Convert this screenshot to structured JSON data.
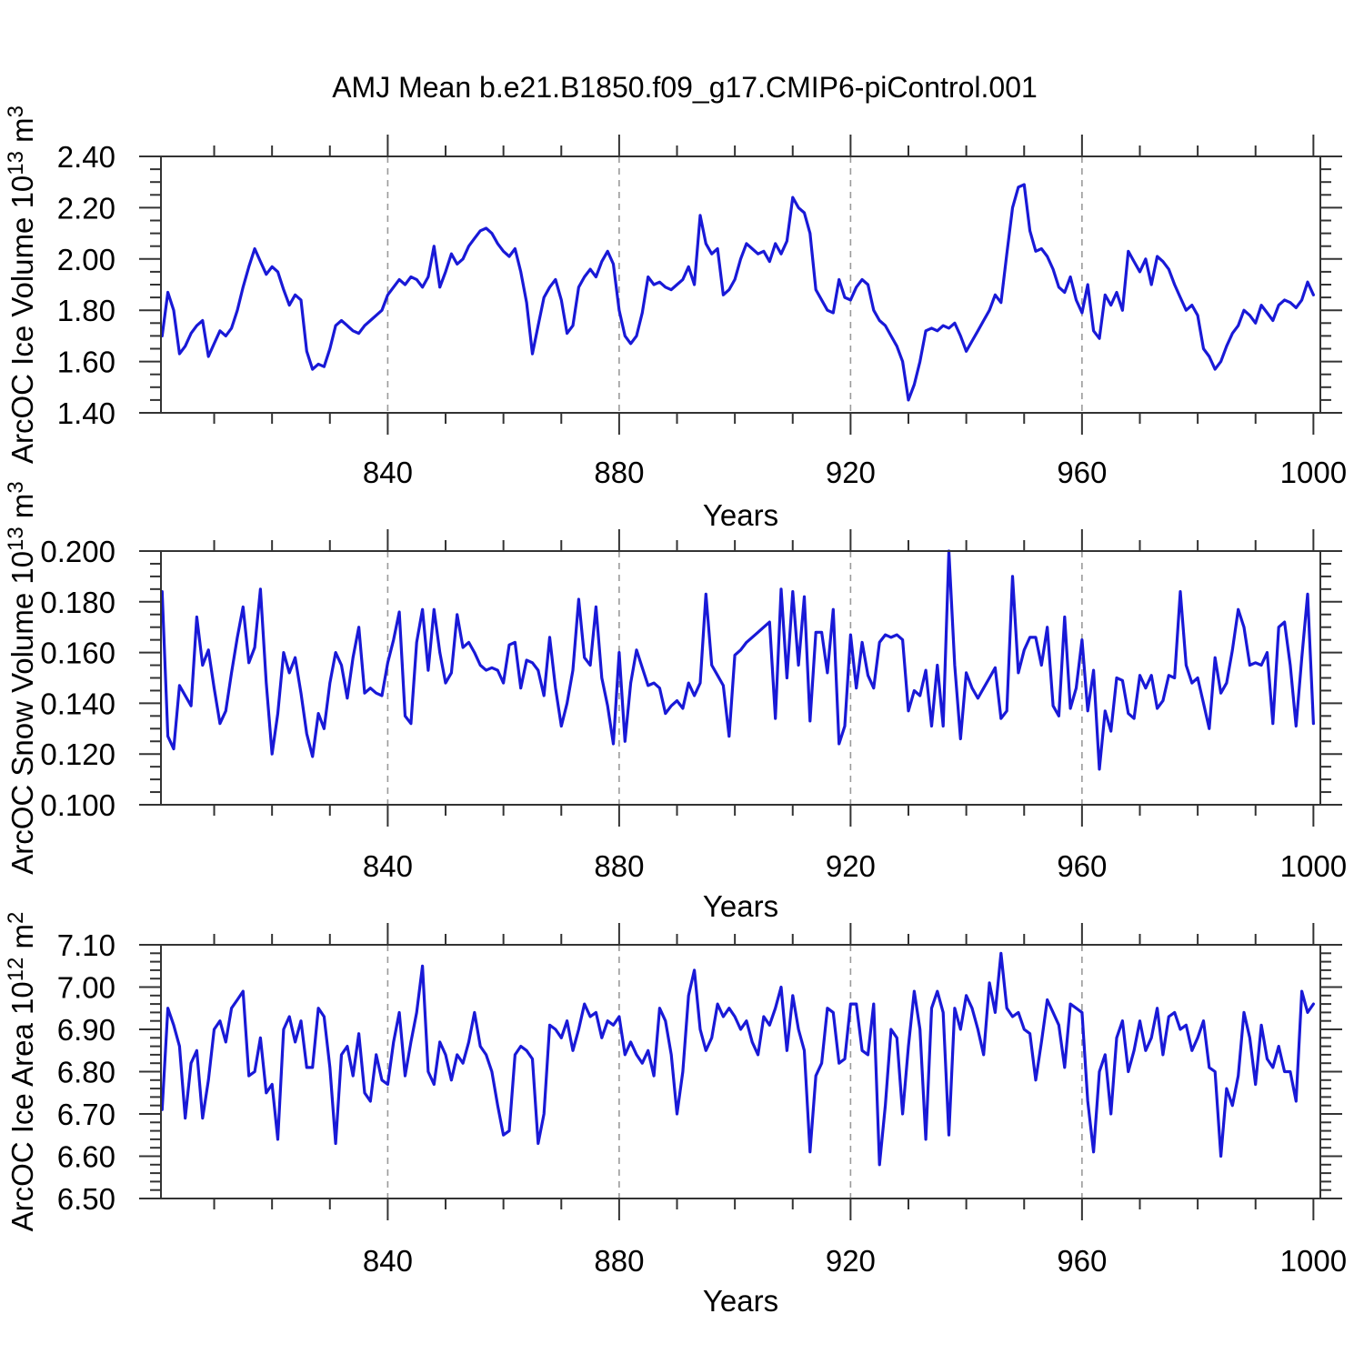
{
  "title": "AMJ Mean b.e21.B1850.f09_g17.CMIP6-piControl.001",
  "style": {
    "line_color": "#1919d7",
    "grid_color": "#9a9a9a",
    "axis_color": "#333333",
    "text_color": "#000000"
  },
  "chart_data": [
    {
      "type": "line",
      "name": "arcoc-ice-volume",
      "xlabel": "Years",
      "ylabel_parts": [
        {
          "t": "ArcOC Ice Volume 10"
        },
        {
          "t": "13",
          "sup": true
        },
        {
          "t": " m"
        },
        {
          "t": "3",
          "sup": true
        }
      ],
      "x_start": 801,
      "x_end": 1000,
      "xlim": [
        800.8,
        1001.2
      ],
      "ylim": [
        1.4,
        2.4
      ],
      "yticks": [
        1.4,
        1.6,
        1.8,
        2.0,
        2.2,
        2.4
      ],
      "ytick_labels": [
        "1.40",
        "1.60",
        "1.80",
        "2.00",
        "2.20",
        "2.40"
      ],
      "y_minor_step": 0.05,
      "xticks": [
        840,
        880,
        920,
        960,
        1000
      ],
      "xtick_labels": [
        "840",
        "880",
        "920",
        "960",
        "1000"
      ],
      "x_minor_step": 10,
      "grid_x": [
        840,
        880,
        920,
        960
      ],
      "values": [
        1.7,
        1.87,
        1.8,
        1.63,
        1.66,
        1.71,
        1.74,
        1.76,
        1.62,
        1.67,
        1.72,
        1.7,
        1.73,
        1.8,
        1.89,
        1.97,
        2.04,
        1.99,
        1.94,
        1.97,
        1.95,
        1.88,
        1.82,
        1.86,
        1.84,
        1.64,
        1.57,
        1.59,
        1.58,
        1.65,
        1.74,
        1.76,
        1.74,
        1.72,
        1.71,
        1.74,
        1.76,
        1.78,
        1.8,
        1.86,
        1.89,
        1.92,
        1.9,
        1.93,
        1.92,
        1.89,
        1.93,
        2.05,
        1.89,
        1.95,
        2.02,
        1.98,
        2.0,
        2.05,
        2.08,
        2.11,
        2.12,
        2.1,
        2.06,
        2.03,
        2.01,
        2.04,
        1.95,
        1.83,
        1.63,
        1.74,
        1.85,
        1.89,
        1.92,
        1.84,
        1.71,
        1.74,
        1.89,
        1.93,
        1.96,
        1.93,
        1.99,
        2.03,
        1.98,
        1.8,
        1.7,
        1.67,
        1.7,
        1.79,
        1.93,
        1.9,
        1.91,
        1.89,
        1.88,
        1.9,
        1.92,
        1.97,
        1.9,
        2.17,
        2.06,
        2.02,
        2.04,
        1.86,
        1.88,
        1.92,
        2.0,
        2.06,
        2.04,
        2.02,
        2.03,
        1.99,
        2.06,
        2.02,
        2.07,
        2.24,
        2.2,
        2.18,
        2.1,
        1.88,
        1.84,
        1.8,
        1.79,
        1.92,
        1.85,
        1.84,
        1.89,
        1.92,
        1.9,
        1.8,
        1.76,
        1.74,
        1.7,
        1.66,
        1.6,
        1.45,
        1.51,
        1.6,
        1.72,
        1.73,
        1.72,
        1.74,
        1.73,
        1.75,
        1.7,
        1.64,
        1.68,
        1.72,
        1.76,
        1.8,
        1.86,
        1.83,
        2.02,
        2.2,
        2.28,
        2.29,
        2.11,
        2.03,
        2.04,
        2.01,
        1.96,
        1.89,
        1.87,
        1.93,
        1.84,
        1.79,
        1.9,
        1.72,
        1.69,
        1.86,
        1.82,
        1.87,
        1.8,
        2.03,
        1.99,
        1.95,
        2.0,
        1.9,
        2.01,
        1.99,
        1.96,
        1.9,
        1.85,
        1.8,
        1.82,
        1.78,
        1.65,
        1.62,
        1.57,
        1.6,
        1.66,
        1.71,
        1.74,
        1.8,
        1.78,
        1.75,
        1.82,
        1.79,
        1.76,
        1.82,
        1.84,
        1.83,
        1.81,
        1.84,
        1.91,
        1.86
      ]
    },
    {
      "type": "line",
      "name": "arcoc-snow-volume",
      "xlabel": "Years",
      "ylabel_parts": [
        {
          "t": "ArcOC Snow Volume 10"
        },
        {
          "t": "13",
          "sup": true
        },
        {
          "t": " m"
        },
        {
          "t": "3",
          "sup": true
        }
      ],
      "x_start": 801,
      "x_end": 1000,
      "xlim": [
        800.8,
        1001.2
      ],
      "ylim": [
        0.1,
        0.2
      ],
      "yticks": [
        0.1,
        0.12,
        0.14,
        0.16,
        0.18,
        0.2
      ],
      "ytick_labels": [
        "0.100",
        "0.120",
        "0.140",
        "0.160",
        "0.180",
        "0.200"
      ],
      "y_minor_step": 0.005,
      "xticks": [
        840,
        880,
        920,
        960,
        1000
      ],
      "xtick_labels": [
        "840",
        "880",
        "920",
        "960",
        "1000"
      ],
      "x_minor_step": 10,
      "grid_x": [
        840,
        880,
        920,
        960
      ],
      "values": [
        0.184,
        0.127,
        0.122,
        0.147,
        0.143,
        0.139,
        0.174,
        0.155,
        0.161,
        0.146,
        0.132,
        0.137,
        0.152,
        0.166,
        0.178,
        0.156,
        0.162,
        0.185,
        0.148,
        0.12,
        0.136,
        0.16,
        0.152,
        0.158,
        0.144,
        0.128,
        0.119,
        0.136,
        0.13,
        0.148,
        0.16,
        0.155,
        0.142,
        0.158,
        0.17,
        0.144,
        0.146,
        0.144,
        0.143,
        0.156,
        0.165,
        0.176,
        0.135,
        0.132,
        0.164,
        0.177,
        0.153,
        0.177,
        0.16,
        0.148,
        0.152,
        0.175,
        0.162,
        0.164,
        0.16,
        0.155,
        0.153,
        0.154,
        0.153,
        0.148,
        0.163,
        0.164,
        0.146,
        0.157,
        0.156,
        0.153,
        0.143,
        0.166,
        0.146,
        0.131,
        0.14,
        0.153,
        0.181,
        0.158,
        0.155,
        0.178,
        0.15,
        0.139,
        0.124,
        0.16,
        0.125,
        0.148,
        0.161,
        0.154,
        0.147,
        0.148,
        0.146,
        0.136,
        0.139,
        0.141,
        0.138,
        0.148,
        0.143,
        0.148,
        0.183,
        0.155,
        0.151,
        0.147,
        0.127,
        0.159,
        0.161,
        0.164,
        0.166,
        0.168,
        0.17,
        0.172,
        0.134,
        0.185,
        0.15,
        0.184,
        0.155,
        0.182,
        0.133,
        0.168,
        0.168,
        0.152,
        0.177,
        0.124,
        0.131,
        0.167,
        0.146,
        0.164,
        0.151,
        0.146,
        0.164,
        0.167,
        0.166,
        0.167,
        0.165,
        0.137,
        0.145,
        0.143,
        0.153,
        0.131,
        0.155,
        0.131,
        0.2,
        0.155,
        0.126,
        0.152,
        0.146,
        0.142,
        0.146,
        0.15,
        0.154,
        0.134,
        0.137,
        0.19,
        0.152,
        0.161,
        0.166,
        0.166,
        0.155,
        0.17,
        0.139,
        0.135,
        0.174,
        0.138,
        0.146,
        0.165,
        0.137,
        0.153,
        0.114,
        0.137,
        0.129,
        0.15,
        0.149,
        0.136,
        0.134,
        0.151,
        0.146,
        0.151,
        0.138,
        0.141,
        0.151,
        0.15,
        0.184,
        0.155,
        0.148,
        0.15,
        0.14,
        0.13,
        0.158,
        0.144,
        0.148,
        0.161,
        0.177,
        0.17,
        0.155,
        0.156,
        0.155,
        0.16,
        0.132,
        0.17,
        0.172,
        0.155,
        0.131,
        0.158,
        0.183,
        0.132
      ]
    },
    {
      "type": "line",
      "name": "arcoc-ice-area",
      "xlabel": "Years",
      "ylabel_parts": [
        {
          "t": "ArcOC Ice Area 10"
        },
        {
          "t": "12",
          "sup": true
        },
        {
          "t": " m"
        },
        {
          "t": "2",
          "sup": true
        }
      ],
      "x_start": 801,
      "x_end": 1000,
      "xlim": [
        800.8,
        1001.2
      ],
      "ylim": [
        6.5,
        7.1
      ],
      "yticks": [
        6.5,
        6.6,
        6.7,
        6.8,
        6.9,
        7.0,
        7.1
      ],
      "ytick_labels": [
        "6.50",
        "6.60",
        "6.70",
        "6.80",
        "6.90",
        "7.00",
        "7.10"
      ],
      "y_minor_step": 0.02,
      "xticks": [
        840,
        880,
        920,
        960,
        1000
      ],
      "xtick_labels": [
        "840",
        "880",
        "920",
        "960",
        "1000"
      ],
      "x_minor_step": 10,
      "grid_x": [
        840,
        880,
        920,
        960
      ],
      "values": [
        6.71,
        6.95,
        6.91,
        6.86,
        6.69,
        6.82,
        6.85,
        6.69,
        6.78,
        6.9,
        6.92,
        6.87,
        6.95,
        6.97,
        6.99,
        6.79,
        6.8,
        6.88,
        6.75,
        6.77,
        6.64,
        6.9,
        6.93,
        6.87,
        6.92,
        6.81,
        6.81,
        6.95,
        6.93,
        6.81,
        6.63,
        6.84,
        6.86,
        6.79,
        6.89,
        6.75,
        6.73,
        6.84,
        6.78,
        6.77,
        6.87,
        6.94,
        6.79,
        6.87,
        6.94,
        7.05,
        6.8,
        6.77,
        6.87,
        6.84,
        6.78,
        6.84,
        6.82,
        6.87,
        6.94,
        6.86,
        6.84,
        6.8,
        6.72,
        6.65,
        6.66,
        6.84,
        6.86,
        6.85,
        6.83,
        6.63,
        6.7,
        6.91,
        6.9,
        6.88,
        6.92,
        6.85,
        6.9,
        6.96,
        6.93,
        6.94,
        6.88,
        6.92,
        6.91,
        6.93,
        6.84,
        6.87,
        6.84,
        6.82,
        6.85,
        6.79,
        6.95,
        6.92,
        6.84,
        6.7,
        6.8,
        6.98,
        7.04,
        6.9,
        6.85,
        6.88,
        6.96,
        6.93,
        6.95,
        6.93,
        6.9,
        6.92,
        6.87,
        6.84,
        6.93,
        6.91,
        6.95,
        7.0,
        6.85,
        6.98,
        6.9,
        6.85,
        6.61,
        6.79,
        6.82,
        6.95,
        6.94,
        6.82,
        6.83,
        6.96,
        6.96,
        6.85,
        6.84,
        6.96,
        6.58,
        6.72,
        6.9,
        6.88,
        6.7,
        6.86,
        6.99,
        6.9,
        6.64,
        6.95,
        6.99,
        6.94,
        6.65,
        6.95,
        6.9,
        6.98,
        6.95,
        6.9,
        6.84,
        7.01,
        6.94,
        7.08,
        6.95,
        6.93,
        6.94,
        6.9,
        6.89,
        6.78,
        6.87,
        6.97,
        6.94,
        6.91,
        6.81,
        6.96,
        6.95,
        6.94,
        6.73,
        6.61,
        6.8,
        6.84,
        6.7,
        6.88,
        6.92,
        6.8,
        6.85,
        6.92,
        6.85,
        6.88,
        6.95,
        6.84,
        6.93,
        6.94,
        6.9,
        6.91,
        6.85,
        6.88,
        6.92,
        6.81,
        6.8,
        6.6,
        6.76,
        6.72,
        6.79,
        6.94,
        6.88,
        6.77,
        6.91,
        6.83,
        6.81,
        6.86,
        6.8,
        6.8,
        6.73,
        6.99,
        6.94,
        6.96
      ]
    }
  ]
}
